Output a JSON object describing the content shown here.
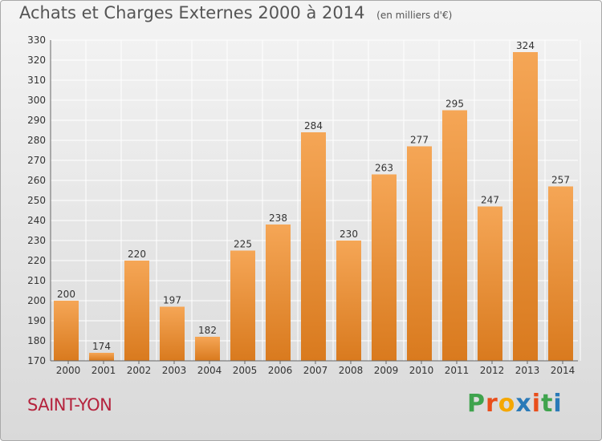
{
  "header": {
    "title": "Achats et Charges Externes 2000 à 2014",
    "subtitle": "(en milliers d'€)"
  },
  "city": "SAINT-YON",
  "logo": {
    "letters": [
      "P",
      "r",
      "o",
      "x",
      "i",
      "t",
      "i"
    ],
    "colors": [
      "#3fa34d",
      "#e94e1b",
      "#f5a700",
      "#2a7ab8",
      "#e94e1b",
      "#3fa34d",
      "#2a7ab8"
    ]
  },
  "colors": {
    "bar_top": "#f5a656",
    "bar_bottom": "#d97a1e",
    "grid": "#ffffff",
    "axis": "#666666"
  },
  "chart_data": {
    "type": "bar",
    "categories": [
      "2000",
      "2001",
      "2002",
      "2003",
      "2004",
      "2005",
      "2006",
      "2007",
      "2008",
      "2009",
      "2010",
      "2011",
      "2012",
      "2013",
      "2014"
    ],
    "values": [
      200,
      174,
      220,
      197,
      182,
      225,
      238,
      284,
      230,
      263,
      277,
      295,
      247,
      324,
      257
    ],
    "ylim": [
      170,
      330
    ],
    "yticks": [
      170,
      180,
      190,
      200,
      210,
      220,
      230,
      240,
      250,
      260,
      270,
      280,
      290,
      300,
      310,
      320,
      330
    ],
    "grid": true
  }
}
